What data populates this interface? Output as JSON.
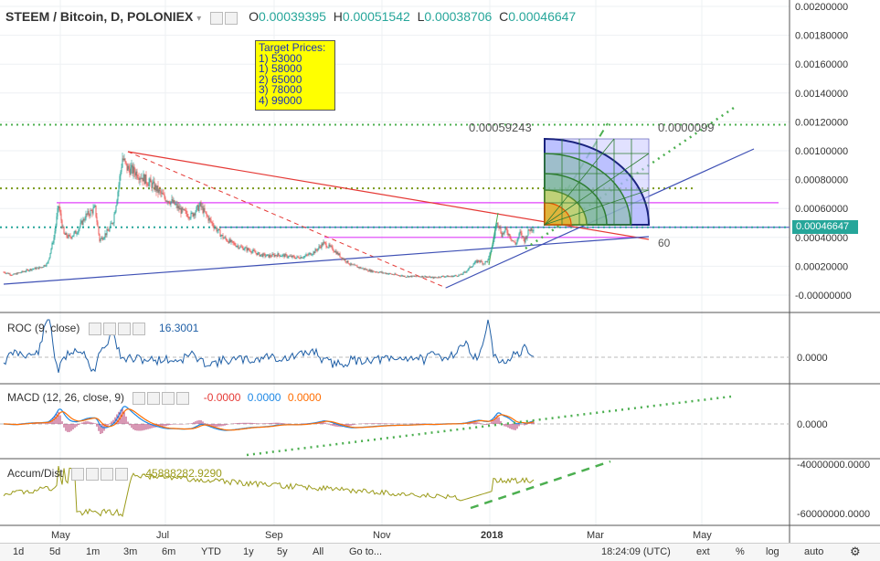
{
  "header": {
    "symbol": "STEEM / Bitcoin, D, POLONIEX",
    "o_label": "O",
    "o_value": "0.00039395",
    "h_label": "H",
    "h_value": "0.00051542",
    "l_label": "L",
    "l_value": "0.00038706",
    "c_label": "C",
    "c_value": "0.00046647"
  },
  "target_prices": [
    "Target Prices:",
    "1) 53000",
    "1) 58000",
    "2) 65000",
    "3) 78000",
    "4) 99000"
  ],
  "annotations": {
    "fib_left": "0.00059243",
    "fib_right": "0.0000099",
    "angle_label": "60"
  },
  "last_price": "0.00046647",
  "indicators": {
    "roc": {
      "name": "ROC (9, close)",
      "value": "16.3001",
      "axis_label": "0.0000"
    },
    "macd": {
      "name": "MACD (12, 26, close, 9)",
      "v1": "-0.0000",
      "v2": "0.0000",
      "v3": "0.0000",
      "axis_label": "0.0000"
    },
    "accum": {
      "name": "Accum/Dist",
      "value": "-45888282.9290",
      "axis_labels": [
        "-40000000.0000",
        "-60000000.0000"
      ]
    }
  },
  "toolbar": {
    "ranges": [
      "1d",
      "5d",
      "1m",
      "3m",
      "6m",
      "YTD",
      "1y",
      "5y",
      "All"
    ],
    "goto": "Go to...",
    "time": "18:24:09 (UTC)",
    "ext": "ext",
    "pct": "%",
    "log": "log",
    "auto": "auto"
  },
  "colors": {
    "up": "#26a69a",
    "down": "#ef5350",
    "roc": "#1f5fa6",
    "macd": "#1e88e5",
    "signal": "#ff6d00",
    "accum": "#9b9b1b"
  },
  "chart_data": [
    {
      "type": "candlestick",
      "title": "STEEM / Bitcoin, D, POLONIEX",
      "x_ticks": [
        "May",
        "Jul",
        "Sep",
        "Nov",
        "2018",
        "Mar",
        "May"
      ],
      "y_ticks": [
        0.0,
        0.0002,
        0.0004,
        0.0006,
        0.0008,
        0.001,
        0.0012,
        0.0014,
        0.0016,
        0.0018,
        0.002
      ],
      "y_tick_labels": [
        "-0.00000000",
        "0.00020000",
        "0.00040000",
        "0.00060000",
        "0.00080000",
        "0.00100000",
        "0.00120000",
        "0.00140000",
        "0.00160000",
        "0.00180000",
        "0.00200000"
      ],
      "ylim": [
        -5e-05,
        0.002
      ],
      "close_path": [
        [
          0,
          0.00016
        ],
        [
          10,
          0.00014
        ],
        [
          20,
          0.00016
        ],
        [
          30,
          0.00018
        ],
        [
          40,
          0.00019
        ],
        [
          48,
          0.00022
        ],
        [
          55,
          0.0004
        ],
        [
          60,
          0.00062
        ],
        [
          66,
          0.00042
        ],
        [
          72,
          0.0004
        ],
        [
          80,
          0.00044
        ],
        [
          90,
          0.00055
        ],
        [
          100,
          0.0006
        ],
        [
          105,
          0.00038
        ],
        [
          115,
          0.00045
        ],
        [
          120,
          0.00052
        ],
        [
          125,
          0.00072
        ],
        [
          130,
          0.00095
        ],
        [
          135,
          0.00088
        ],
        [
          145,
          0.00085
        ],
        [
          155,
          0.0008
        ],
        [
          165,
          0.00075
        ],
        [
          175,
          0.00068
        ],
        [
          185,
          0.00064
        ],
        [
          195,
          0.00058
        ],
        [
          205,
          0.00055
        ],
        [
          215,
          0.00062
        ],
        [
          222,
          0.00055
        ],
        [
          230,
          0.00048
        ],
        [
          240,
          0.0004
        ],
        [
          250,
          0.00036
        ],
        [
          260,
          0.00033
        ],
        [
          270,
          0.00031
        ],
        [
          280,
          0.00028
        ],
        [
          290,
          0.00027
        ],
        [
          300,
          0.00028
        ],
        [
          310,
          0.00027
        ],
        [
          320,
          0.00026
        ],
        [
          330,
          0.00027
        ],
        [
          340,
          0.0003
        ],
        [
          350,
          0.00036
        ],
        [
          360,
          0.00032
        ],
        [
          370,
          0.00026
        ],
        [
          380,
          0.00021
        ],
        [
          390,
          0.00019
        ],
        [
          400,
          0.00017
        ],
        [
          410,
          0.00016
        ],
        [
          420,
          0.00015
        ],
        [
          430,
          0.00014
        ],
        [
          440,
          0.00013
        ],
        [
          450,
          0.00013
        ],
        [
          460,
          0.00013
        ],
        [
          470,
          0.00012
        ],
        [
          480,
          0.00013
        ],
        [
          490,
          0.00013
        ],
        [
          500,
          0.00014
        ],
        [
          505,
          0.00016
        ],
        [
          510,
          0.00019
        ],
        [
          515,
          0.00022
        ],
        [
          520,
          0.00024
        ],
        [
          525,
          0.00022
        ],
        [
          530,
          0.00024
        ],
        [
          535,
          0.00035
        ],
        [
          540,
          0.00052
        ],
        [
          545,
          0.00042
        ],
        [
          550,
          0.00045
        ],
        [
          555,
          0.0004
        ],
        [
          560,
          0.00035
        ],
        [
          565,
          0.00043
        ],
        [
          570,
          0.00038
        ],
        [
          575,
          0.00045
        ],
        [
          580,
          0.00047
        ]
      ],
      "horizontal_levels": [
        {
          "y": 0.00118,
          "style": "dotted",
          "color": "#4caf50"
        },
        {
          "y": 0.00074,
          "style": "dotted",
          "color": "#7a9a1a"
        },
        {
          "y": 0.00064,
          "style": "solid",
          "color": "#e040fb"
        },
        {
          "y": 0.00047,
          "style": "solid",
          "color": "#5c6bc0"
        },
        {
          "y": 0.0004,
          "style": "solid",
          "color": "#e040fb"
        },
        {
          "y": 0.00047,
          "style": "dotted",
          "color": "#26a69a"
        }
      ],
      "last_price": 0.00046647
    },
    {
      "type": "line",
      "title": "ROC (9, close)",
      "y_ticks": [
        0.0
      ],
      "y_tick_labels": [
        "0.0000"
      ]
    },
    {
      "type": "line",
      "title": "MACD (12, 26, close, 9)",
      "y_ticks": [
        0.0
      ],
      "y_tick_labels": [
        "0.0000"
      ]
    },
    {
      "type": "line",
      "title": "Accum/Dist",
      "y_ticks": [
        -40000000,
        -60000000
      ],
      "y_tick_labels": [
        "-40000000.0000",
        "-60000000.0000"
      ]
    }
  ]
}
